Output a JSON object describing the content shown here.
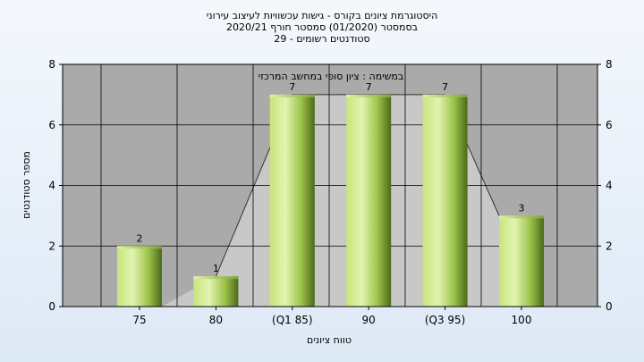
{
  "chart_data": {
    "type": "bar",
    "title_lines": [
      "היסטוגרמת ציונים בקורס - גישות עכשוויות לעיצוב עירוני",
      "בסמסטר  (01/2020)  סמסטר חורף  2020/21",
      "סטודנטים רשומים - 29"
    ],
    "annotation": "במשימה : ציון סופי במחשב המרכזי",
    "xlabel": "טווח ציונים",
    "ylabel": "מספר סטודנטים",
    "categories": [
      "75",
      "80",
      "(Q1 85)",
      "90",
      "(Q3 95)",
      "100"
    ],
    "values": [
      2,
      1,
      7,
      7,
      7,
      3
    ],
    "ylim": [
      0,
      8
    ],
    "yticks": [
      0,
      2,
      4,
      6,
      8
    ],
    "grid": true,
    "highlight_range_categories": [
      "(Q1 85)",
      "(Q3 95)"
    ],
    "colors": {
      "plot_bg": "#aaaaaa",
      "bar_light": "#d4ec94",
      "bar_mid": "#9cc24a",
      "bar_dark": "#4a6a18",
      "highlight": "#ffcc55",
      "distribution": "#c8c8c8",
      "grid": "#000000"
    }
  }
}
